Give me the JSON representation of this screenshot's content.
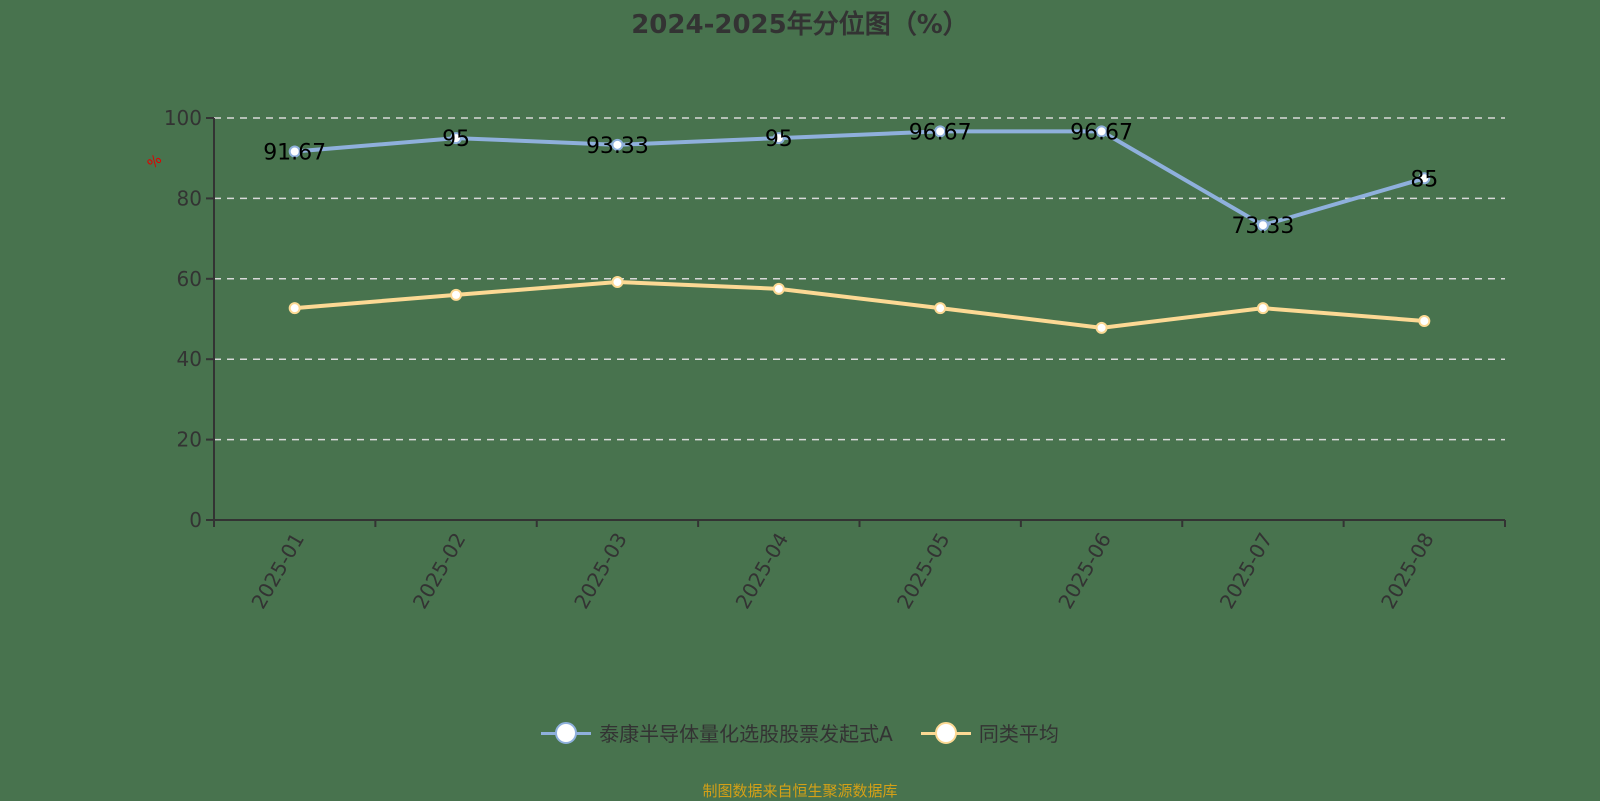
{
  "title": "2024-2025年分位图（%）",
  "yaxis": {
    "unit_label": "%",
    "ticks": [
      "0",
      "20",
      "40",
      "60",
      "80",
      "100"
    ]
  },
  "legend": [
    {
      "label": "泰康半导体量化选股股票发起式A",
      "color": "#8fb0dc"
    },
    {
      "label": "同类平均",
      "color": "#fcd994"
    }
  ],
  "source": "制图数据来自恒生聚源数据库",
  "chart_data": {
    "type": "line",
    "title": "2024-2025年分位图（%）",
    "xlabel": "",
    "ylabel": "%",
    "ylim": [
      0,
      100
    ],
    "grid": true,
    "legend_position": "bottom",
    "categories": [
      "2025-01",
      "2025-02",
      "2025-03",
      "2025-04",
      "2025-05",
      "2025-06",
      "2025-07",
      "2025-08"
    ],
    "series": [
      {
        "name": "泰康半导体量化选股股票发起式A",
        "values": [
          91.67,
          95,
          93.33,
          95,
          96.67,
          96.67,
          73.33,
          85
        ],
        "labels": [
          "91.67",
          "95",
          "93.33",
          "95",
          "96.67",
          "96.67",
          "73.33",
          "85"
        ],
        "color": "#8fb0dc"
      },
      {
        "name": "同类平均",
        "values": [
          52.7,
          56.0,
          59.2,
          57.5,
          52.7,
          47.8,
          52.7,
          49.5
        ],
        "color": "#fcd994"
      }
    ]
  }
}
